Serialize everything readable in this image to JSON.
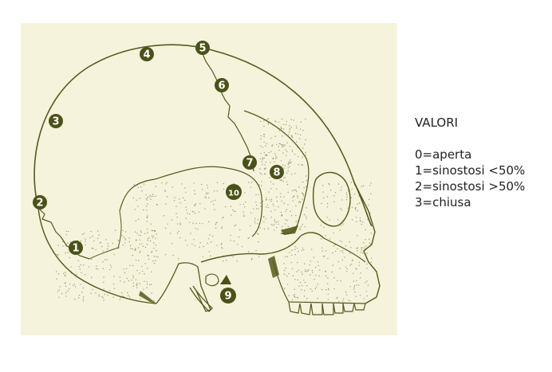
{
  "figure": {
    "colors": {
      "paper": "#f5f3dc",
      "ink": "#545a1c",
      "marker_fill": "#4b5219",
      "marker_text": "#ffffff"
    },
    "markers": [
      "1",
      "2",
      "3",
      "4",
      "5",
      "6",
      "7",
      "8",
      "9",
      "10"
    ]
  },
  "legend": {
    "title": "VALORI",
    "items": [
      "0=aperta",
      "1=sinostosi <50%",
      "2=sinostosi >50%",
      "3=chiusa"
    ]
  }
}
